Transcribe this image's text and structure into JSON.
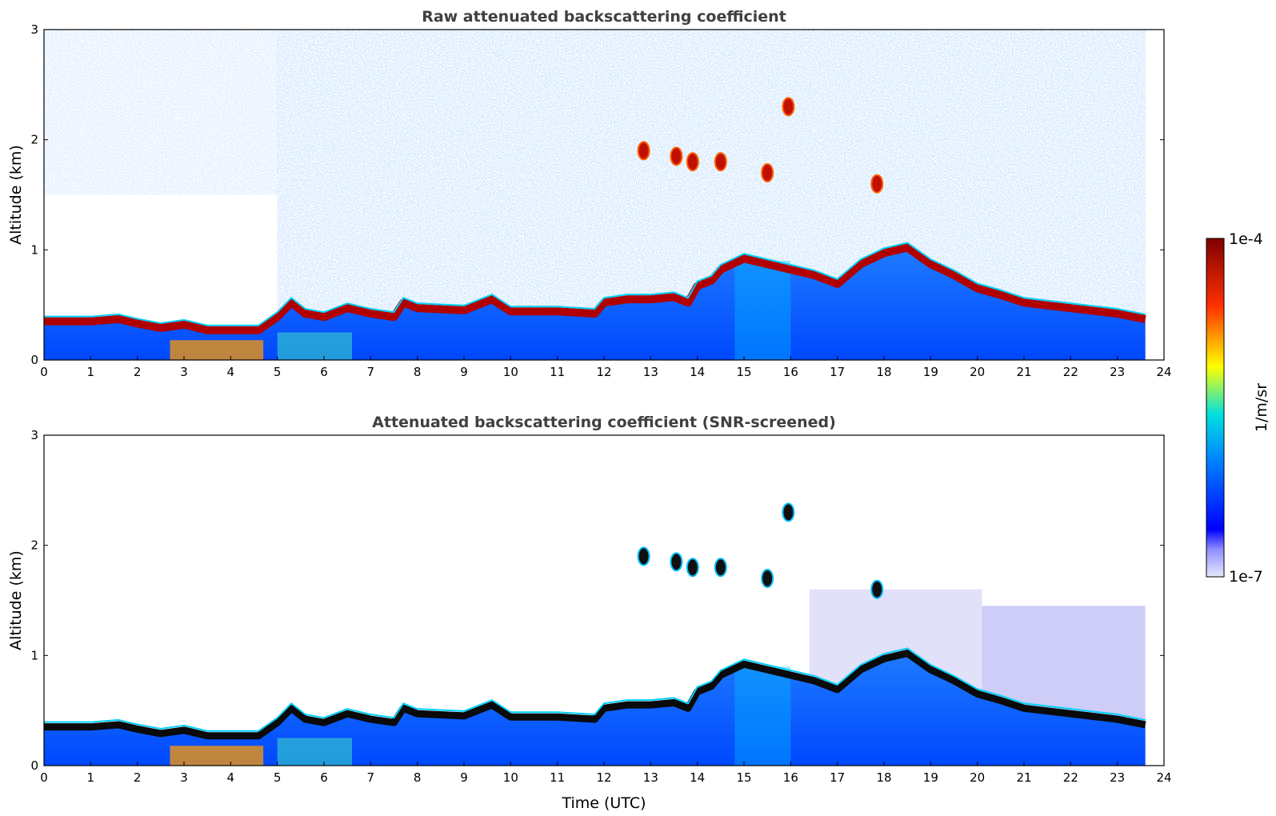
{
  "chart_data": [
    {
      "type": "heatmap",
      "title": "Raw attenuated backscattering coefficient",
      "xlabel": "",
      "ylabel": "Altitude (km)",
      "xlim": [
        0,
        24
      ],
      "ylim": [
        0,
        3
      ],
      "xticks": [
        "0",
        "1",
        "2",
        "3",
        "4",
        "5",
        "6",
        "7",
        "8",
        "9",
        "10",
        "11",
        "12",
        "13",
        "14",
        "15",
        "16",
        "17",
        "18",
        "19",
        "20",
        "21",
        "22",
        "23",
        "24"
      ],
      "yticks": [
        "0",
        "1",
        "2",
        "3"
      ],
      "data_end_time": 23.6,
      "boundary_layer_top_km": [
        [
          0,
          0.38
        ],
        [
          1,
          0.38
        ],
        [
          1.6,
          0.4
        ],
        [
          2,
          0.36
        ],
        [
          2.5,
          0.32
        ],
        [
          3,
          0.35
        ],
        [
          3.5,
          0.3
        ],
        [
          4,
          0.3
        ],
        [
          4.6,
          0.3
        ],
        [
          5,
          0.42
        ],
        [
          5.3,
          0.55
        ],
        [
          5.6,
          0.45
        ],
        [
          6,
          0.42
        ],
        [
          6.5,
          0.5
        ],
        [
          7,
          0.45
        ],
        [
          7.5,
          0.42
        ],
        [
          7.7,
          0.55
        ],
        [
          8,
          0.5
        ],
        [
          9,
          0.48
        ],
        [
          9.6,
          0.58
        ],
        [
          10,
          0.47
        ],
        [
          11,
          0.47
        ],
        [
          11.8,
          0.45
        ],
        [
          12,
          0.55
        ],
        [
          12.5,
          0.58
        ],
        [
          13,
          0.58
        ],
        [
          13.5,
          0.6
        ],
        [
          13.8,
          0.55
        ],
        [
          14,
          0.7
        ],
        [
          14.3,
          0.75
        ],
        [
          14.5,
          0.85
        ],
        [
          15,
          0.95
        ],
        [
          15.5,
          0.9
        ],
        [
          16,
          0.85
        ],
        [
          16.5,
          0.8
        ],
        [
          17,
          0.72
        ],
        [
          17.5,
          0.9
        ],
        [
          18,
          1.0
        ],
        [
          18.5,
          1.05
        ],
        [
          19,
          0.9
        ],
        [
          19.5,
          0.8
        ],
        [
          20,
          0.68
        ],
        [
          20.5,
          0.62
        ],
        [
          21,
          0.55
        ],
        [
          22,
          0.5
        ],
        [
          23,
          0.45
        ],
        [
          23.6,
          0.4
        ]
      ],
      "elevated_cloud_features": [
        {
          "time": 12.85,
          "altitude_km": 1.9
        },
        {
          "time": 13.55,
          "altitude_km": 1.85
        },
        {
          "time": 13.9,
          "altitude_km": 1.8
        },
        {
          "time": 14.5,
          "altitude_km": 1.8
        },
        {
          "time": 15.5,
          "altitude_km": 1.7
        },
        {
          "time": 15.95,
          "altitude_km": 2.3
        },
        {
          "time": 17.85,
          "altitude_km": 1.6
        }
      ]
    },
    {
      "type": "heatmap",
      "title": "Attenuated backscattering coefficient (SNR-screened)",
      "xlabel": "Time (UTC)",
      "ylabel": "Altitude (km)",
      "xlim": [
        0,
        24
      ],
      "ylim": [
        0,
        3
      ],
      "xticks": [
        "0",
        "1",
        "2",
        "3",
        "4",
        "5",
        "6",
        "7",
        "8",
        "9",
        "10",
        "11",
        "12",
        "13",
        "14",
        "15",
        "16",
        "17",
        "18",
        "19",
        "20",
        "21",
        "22",
        "23",
        "24"
      ],
      "yticks": [
        "0",
        "1",
        "2",
        "3"
      ],
      "data_end_time": 23.6
    }
  ],
  "colorbar": {
    "label": "1/m/sr",
    "max_label": "1e-4",
    "min_label": "1e-7",
    "scale": "log",
    "colormap": "jet",
    "colors": [
      "#e8e8ff",
      "#0000ff",
      "#00bfff",
      "#ffff00",
      "#ff0000",
      "#800000"
    ]
  }
}
